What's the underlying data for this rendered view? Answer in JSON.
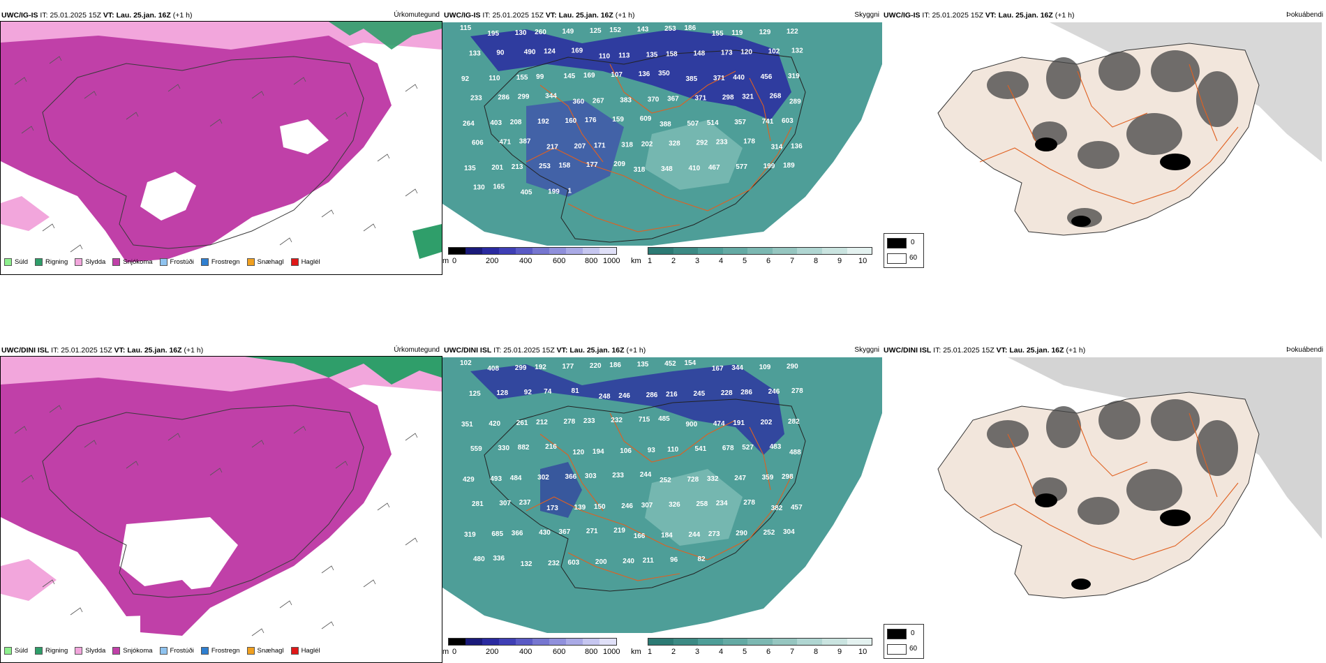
{
  "rows": [
    {
      "model": "UWC/IG-IS",
      "it_label": "IT:",
      "it_value": "25.01.2025 15Z",
      "vt_label": "VT:",
      "vt_value": "Lau. 25.jan. 16Z",
      "lead": "(+1 h)",
      "cloud_numbers": [
        "115",
        "195",
        "130",
        "260",
        "149",
        "125",
        "152",
        "143",
        "253",
        "186",
        "155",
        "119",
        "129",
        "122",
        "133",
        "90",
        "490",
        "124",
        "169",
        "110",
        "113",
        "135",
        "158",
        "148",
        "173",
        "120",
        "102",
        "132",
        "92",
        "110",
        "155",
        "99",
        "145",
        "169",
        "107",
        "136",
        "350",
        "385",
        "371",
        "440",
        "456",
        "319",
        "233",
        "286",
        "299",
        "344",
        "360",
        "267",
        "383",
        "370",
        "367",
        "371",
        "298",
        "321",
        "268",
        "289",
        "264",
        "403",
        "208",
        "192",
        "160",
        "176",
        "159",
        "609",
        "388",
        "507",
        "514",
        "357",
        "741",
        "603",
        "606",
        "471",
        "387",
        "217",
        "207",
        "171",
        "318",
        "202",
        "328",
        "292",
        "233",
        "178",
        "314",
        "136",
        "135",
        "201",
        "213",
        "253",
        "158",
        "177",
        "209",
        "318",
        "348",
        "410",
        "467",
        "577",
        "199",
        "189",
        "130",
        "165",
        "405",
        "199",
        "1"
      ]
    },
    {
      "model": "UWC/DINI ISL",
      "it_label": "IT:",
      "it_value": "25.01.2025 15Z",
      "vt_label": "VT:",
      "vt_value": "Lau. 25.jan. 16Z",
      "lead": "(+1 h)",
      "cloud_numbers": [
        "102",
        "408",
        "299",
        "192",
        "177",
        "220",
        "186",
        "135",
        "452",
        "154",
        "167",
        "344",
        "109",
        "290",
        "125",
        "128",
        "92",
        "74",
        "81",
        "248",
        "246",
        "286",
        "216",
        "245",
        "228",
        "286",
        "246",
        "278",
        "351",
        "420",
        "261",
        "212",
        "278",
        "233",
        "232",
        "715",
        "485",
        "900",
        "474",
        "191",
        "202",
        "282",
        "559",
        "330",
        "882",
        "216",
        "120",
        "194",
        "106",
        "93",
        "110",
        "541",
        "678",
        "527",
        "483",
        "488",
        "429",
        "493",
        "484",
        "302",
        "366",
        "303",
        "233",
        "244",
        "252",
        "728",
        "332",
        "247",
        "359",
        "298",
        "281",
        "307",
        "237",
        "173",
        "139",
        "150",
        "246",
        "307",
        "326",
        "258",
        "234",
        "278",
        "382",
        "457",
        "319",
        "685",
        "366",
        "430",
        "367",
        "271",
        "219",
        "166",
        "184",
        "244",
        "273",
        "290",
        "252",
        "304",
        "480",
        "336",
        "132",
        "232",
        "603",
        "200",
        "240",
        "211",
        "96",
        "82"
      ]
    }
  ],
  "panel_titles": {
    "precip_type": "Úrkomutegund",
    "visibility": "Skyggni",
    "fog": "Þokuábendi"
  },
  "precip_legend": [
    {
      "label": "Súld",
      "color": "#8ef08e"
    },
    {
      "label": "Rigning",
      "color": "#2f9e6a"
    },
    {
      "label": "Slydda",
      "color": "#f2a6dc"
    },
    {
      "label": "Snjókoma",
      "color": "#c040a8"
    },
    {
      "label": "Frostúði",
      "color": "#8fc3ef"
    },
    {
      "label": "Frostregn",
      "color": "#2f7fd0"
    },
    {
      "label": "Snæhagl",
      "color": "#f0a020"
    },
    {
      "label": "Haglél",
      "color": "#e01818"
    }
  ],
  "cloudbase_scale": {
    "unit": "m",
    "ticks": [
      "0",
      "200",
      "400",
      "600",
      "800",
      "1000"
    ]
  },
  "visibility_scale": {
    "unit": "km",
    "ticks": [
      "1",
      "2",
      "3",
      "4",
      "5",
      "6",
      "7",
      "8",
      "9",
      "10"
    ]
  },
  "fog_legend": [
    {
      "label": "0",
      "color": "#000000"
    },
    {
      "label": "60",
      "color": "#ffffff"
    }
  ],
  "colors": {
    "snow": "#c040a8",
    "sleet": "#f2a6dc",
    "rain": "#2f9e6a",
    "drizzle": "#8ef08e",
    "vis_teal": "#4e9e98",
    "cloud_blue": "#2a2aa0",
    "roads": "#e06020"
  }
}
